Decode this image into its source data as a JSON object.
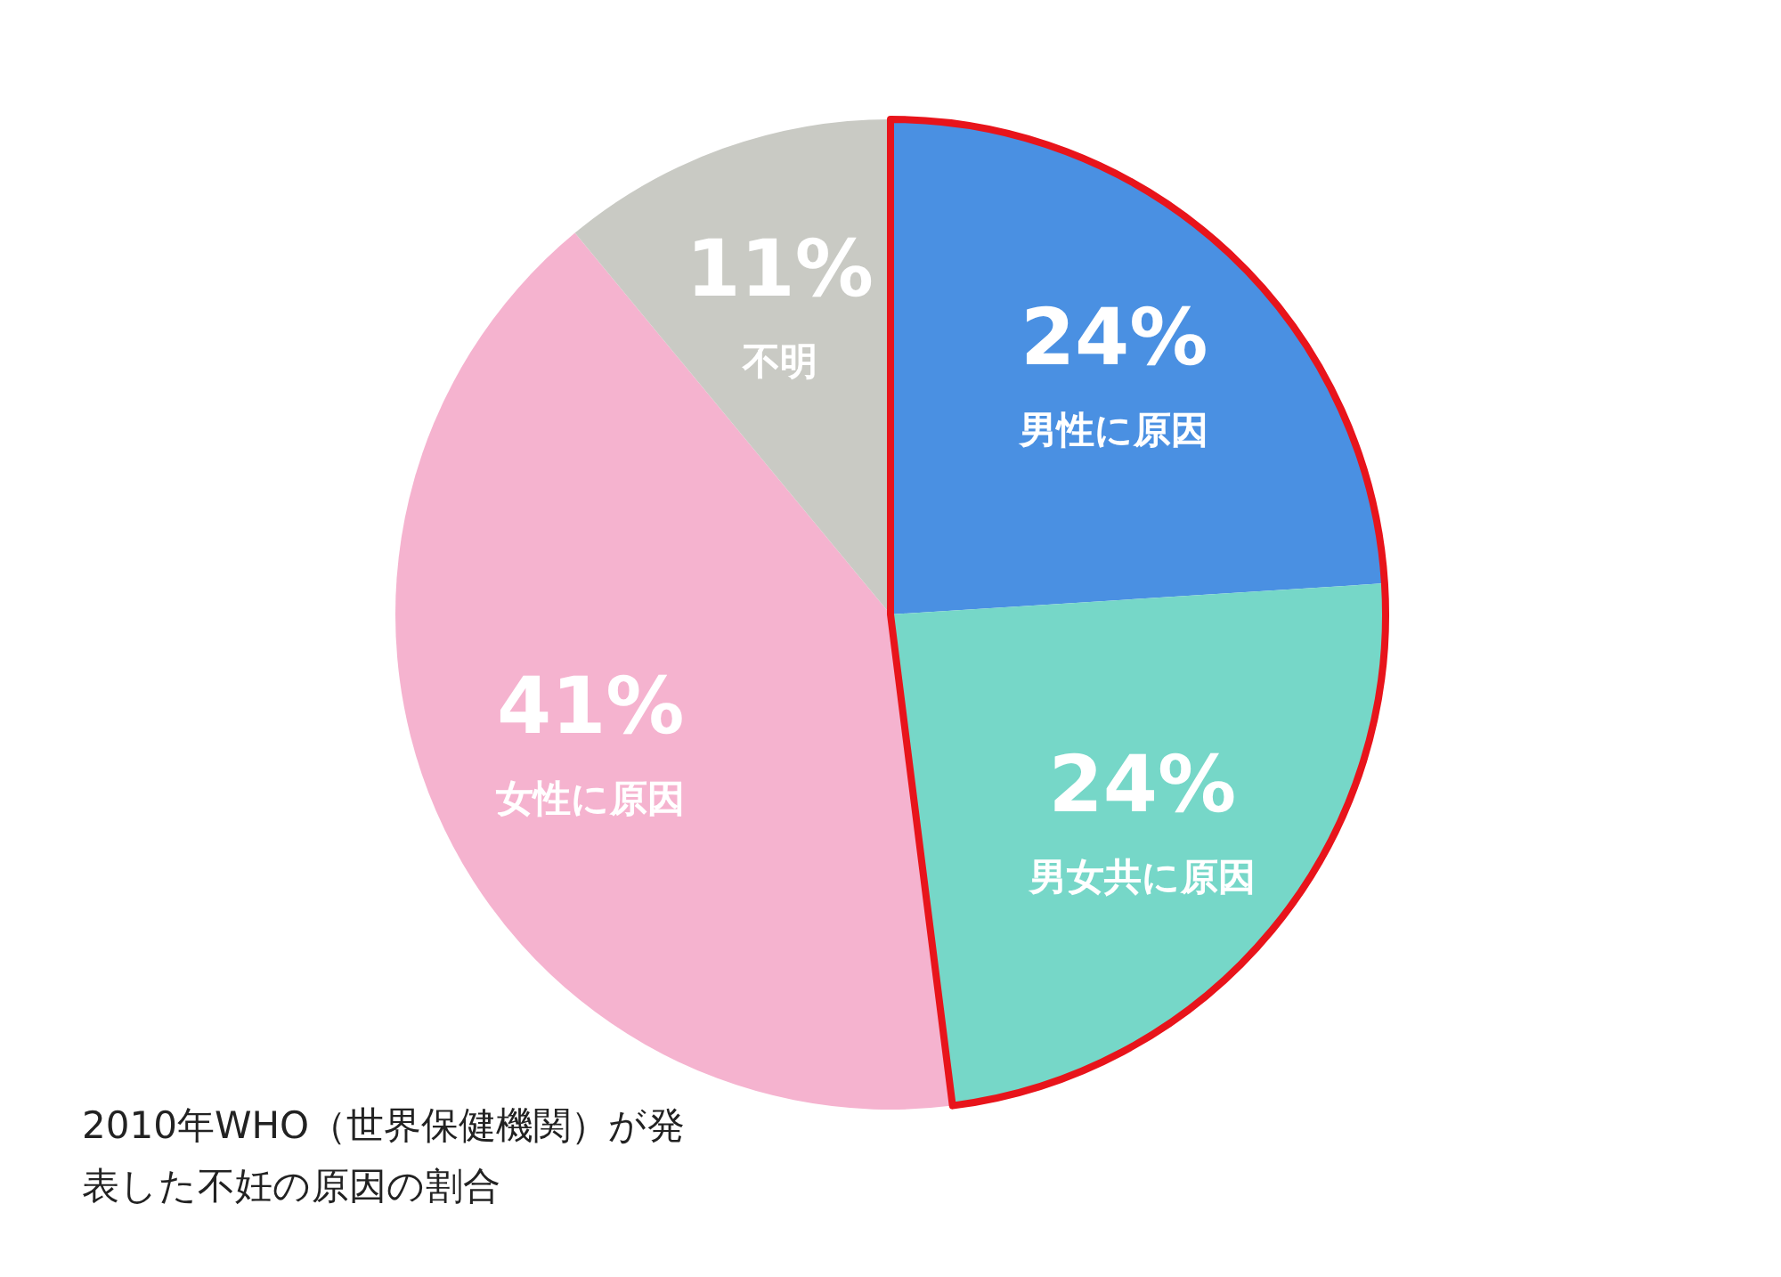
{
  "chart_data": {
    "type": "pie",
    "categories": [
      "男性に原因",
      "男女共に原因",
      "女性に原因",
      "不明"
    ],
    "values": [
      24,
      24,
      41,
      11
    ],
    "colors": [
      "#4a90e2",
      "#76d7c8",
      "#f5b3cf",
      "#c9cac4"
    ],
    "value_labels": [
      "24%",
      "24%",
      "41%",
      "11%"
    ],
    "legend": false,
    "annotations": [
      "2010年WHO（世界保健機関）が発表した不妊の原因の割合"
    ]
  }
}
